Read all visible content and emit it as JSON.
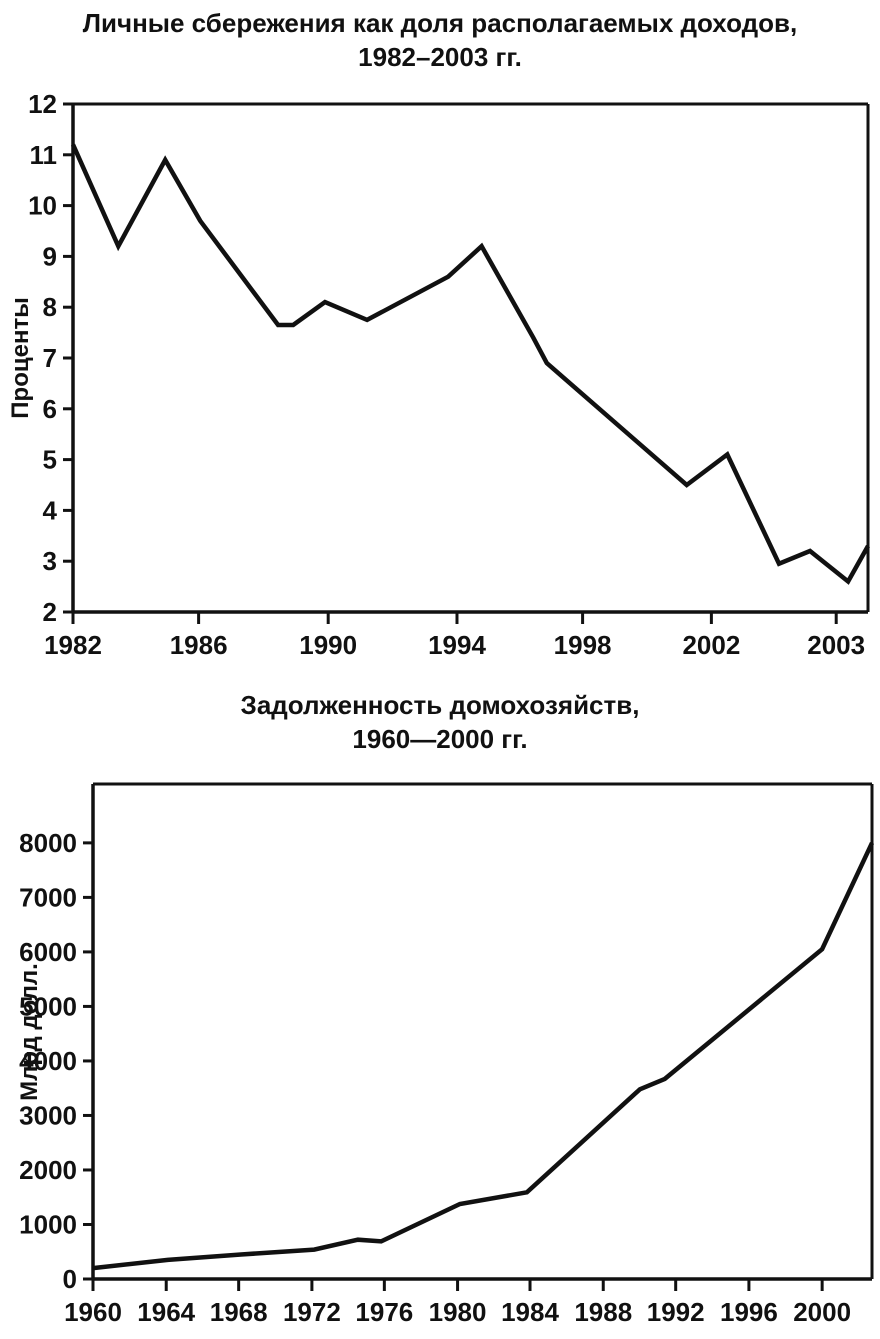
{
  "page": {
    "background": "#ffffff",
    "ink": "#111111",
    "line_color": "#111111"
  },
  "chart_data": [
    {
      "name": "personal-savings-rate",
      "type": "line",
      "title": [
        "Личные сбережения как доля располагаемых доходов,",
        "1982–2003 гг."
      ],
      "ylabel": "Проценты",
      "xlabel": "",
      "ylim": [
        2,
        12
      ],
      "grid": false,
      "legend": null,
      "y_ticks": [
        "12",
        "11",
        "10",
        "9",
        "8",
        "7",
        "6",
        "5",
        "4",
        "3",
        "2"
      ],
      "x_ticks": [
        {
          "label": "1982",
          "f": 0.0
        },
        {
          "label": "1986",
          "f": 0.158
        },
        {
          "label": "1990",
          "f": 0.321
        },
        {
          "label": "1994",
          "f": 0.483
        },
        {
          "label": "1998",
          "f": 0.641
        },
        {
          "label": "2002",
          "f": 0.803
        },
        {
          "label": "2003",
          "f": 0.96
        }
      ],
      "points": [
        {
          "year": "1982",
          "f": 0.0,
          "v": 11.2
        },
        {
          "year": "1983",
          "f": 0.057,
          "v": 9.2
        },
        {
          "year": "1985",
          "f": 0.116,
          "v": 10.9
        },
        {
          "year": "1986",
          "f": 0.16,
          "v": 9.7
        },
        {
          "year": "1988",
          "f": 0.258,
          "v": 7.65
        },
        {
          "year": "1989",
          "f": 0.277,
          "v": 7.65
        },
        {
          "year": "1990",
          "f": 0.317,
          "v": 8.1
        },
        {
          "year": "1991",
          "f": 0.37,
          "v": 7.75
        },
        {
          "year": "1994",
          "f": 0.472,
          "v": 8.6
        },
        {
          "year": "1995",
          "f": 0.514,
          "v": 9.2
        },
        {
          "year": "1996",
          "f": 0.579,
          "v": 7.4
        },
        {
          "year": "1997",
          "f": 0.596,
          "v": 6.9
        },
        {
          "year": "2001",
          "f": 0.772,
          "v": 4.5
        },
        {
          "year": "2002",
          "f": 0.823,
          "v": 5.1
        },
        {
          "year": "",
          "f": 0.888,
          "v": 2.95
        },
        {
          "year": "",
          "f": 0.927,
          "v": 3.2
        },
        {
          "year": "2003",
          "f": 0.975,
          "v": 2.6
        },
        {
          "year": "",
          "f": 1.0,
          "v": 3.3
        }
      ]
    },
    {
      "name": "household-debt",
      "type": "line",
      "title": [
        "Задолженность домохозяйств,",
        "1960—2000 гг."
      ],
      "ylabel": "Млрд долл.",
      "xlabel": "",
      "ylim": [
        0,
        9000
      ],
      "grid": false,
      "legend": null,
      "y_ticks": [
        "8000",
        "7000",
        "6000",
        "5000",
        "4000",
        "3000",
        "2000",
        "1000",
        "0"
      ],
      "x_ticks": [
        {
          "label": "1960",
          "f": 0.0
        },
        {
          "label": "1964",
          "f": 0.094
        },
        {
          "label": "1968",
          "f": 0.187
        },
        {
          "label": "1972",
          "f": 0.281
        },
        {
          "label": "1976",
          "f": 0.374
        },
        {
          "label": "1980",
          "f": 0.468
        },
        {
          "label": "1984",
          "f": 0.561
        },
        {
          "label": "1988",
          "f": 0.655
        },
        {
          "label": "1992",
          "f": 0.748
        },
        {
          "label": "1996",
          "f": 0.842
        },
        {
          "label": "2000",
          "f": 0.936
        }
      ],
      "points": [
        {
          "year": "1960",
          "f": 0.0,
          "v": 200
        },
        {
          "year": "1964",
          "f": 0.096,
          "v": 350
        },
        {
          "year": "1968",
          "f": 0.19,
          "v": 450
        },
        {
          "year": "1972",
          "f": 0.284,
          "v": 540
        },
        {
          "year": "1974",
          "f": 0.34,
          "v": 720
        },
        {
          "year": "1976",
          "f": 0.37,
          "v": 690
        },
        {
          "year": "1980",
          "f": 0.471,
          "v": 1375
        },
        {
          "year": "1984",
          "f": 0.557,
          "v": 1590
        },
        {
          "year": "1990",
          "f": 0.702,
          "v": 3480
        },
        {
          "year": "1992",
          "f": 0.734,
          "v": 3670
        },
        {
          "year": "2000",
          "f": 0.936,
          "v": 6050
        },
        {
          "year": "",
          "f": 1.0,
          "v": 8000
        }
      ]
    }
  ]
}
